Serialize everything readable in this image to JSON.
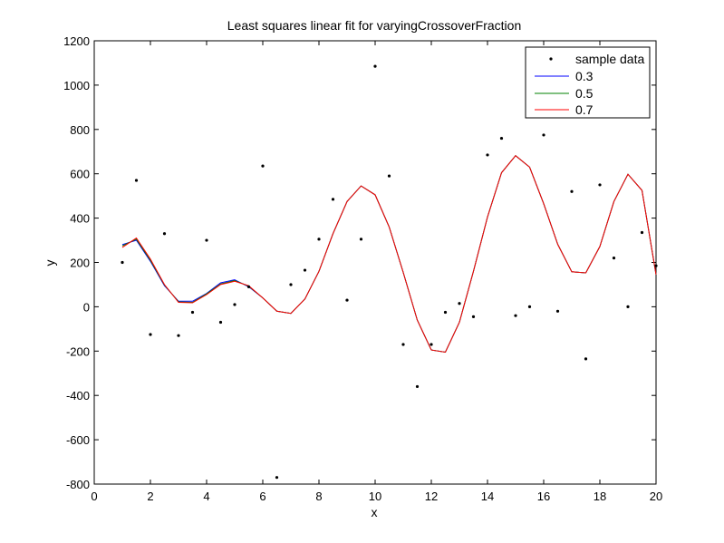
{
  "chart_data": {
    "type": "line",
    "title": "Least squares linear fit for varyingCrossoverFraction",
    "xlabel": "x",
    "ylabel": "y",
    "xlim": [
      0,
      20
    ],
    "ylim": [
      -800,
      1200
    ],
    "xticks": [
      0,
      2,
      4,
      6,
      8,
      10,
      12,
      14,
      16,
      18,
      20
    ],
    "yticks": [
      -800,
      -600,
      -400,
      -200,
      0,
      200,
      400,
      600,
      800,
      1000,
      1200
    ],
    "grid": false,
    "legend_position": "top-right",
    "scatter": {
      "name": "sample data",
      "color": "#000000",
      "x": [
        1,
        1.5,
        2,
        2.5,
        3,
        3.5,
        4,
        4.5,
        5,
        5.5,
        6,
        6.5,
        7,
        7.5,
        8,
        8.5,
        9,
        9.5,
        10,
        10.5,
        11,
        11.5,
        12,
        12.5,
        13,
        13.5,
        14,
        14.5,
        15,
        15.5,
        16,
        16.5,
        17,
        17.5,
        18,
        18.5,
        19,
        19.5,
        20
      ],
      "y": [
        200,
        570,
        -125,
        330,
        -130,
        -25,
        300,
        -70,
        10,
        90,
        635,
        -770,
        100,
        165,
        305,
        485,
        30,
        305,
        1085,
        590,
        -170,
        -360,
        -170,
        -25,
        15,
        -45,
        685,
        760,
        -40,
        0,
        775,
        -20,
        520,
        -235,
        550,
        220,
        0,
        335,
        185
      ]
    },
    "x": [
      1,
      1.5,
      2,
      2.5,
      3,
      3.5,
      4,
      4.5,
      5,
      5.5,
      6,
      6.5,
      7,
      7.5,
      8,
      8.5,
      9,
      9.5,
      10,
      10.5,
      11,
      11.5,
      12,
      12.5,
      13,
      13.5,
      14,
      14.5,
      15,
      15.5,
      16,
      16.5,
      17,
      17.5,
      18,
      18.5,
      19,
      19.5,
      20
    ],
    "series": [
      {
        "name": "0.3",
        "color": "#0000ff",
        "values": [
          280,
          300,
          205,
          95,
          25,
          25,
          60,
          108,
          122,
          90,
          40,
          -20,
          -30,
          35,
          160,
          330,
          475,
          545,
          505,
          360,
          155,
          -60,
          -195,
          -205,
          -70,
          160,
          405,
          605,
          682,
          630,
          465,
          282,
          158,
          153,
          272,
          475,
          598,
          525,
          145
        ]
      },
      {
        "name": "0.5",
        "color": "#008000",
        "values": [
          275,
          305,
          210,
          98,
          22,
          20,
          58,
          103,
          118,
          93,
          40,
          -20,
          -30,
          35,
          160,
          330,
          475,
          545,
          505,
          360,
          155,
          -60,
          -195,
          -205,
          -70,
          160,
          405,
          605,
          682,
          630,
          465,
          282,
          158,
          153,
          272,
          475,
          598,
          525,
          145
        ]
      },
      {
        "name": "0.7",
        "color": "#ff0000",
        "values": [
          268,
          310,
          215,
          100,
          20,
          18,
          55,
          100,
          115,
          95,
          40,
          -20,
          -30,
          35,
          160,
          330,
          475,
          545,
          505,
          360,
          155,
          -60,
          -195,
          -205,
          -70,
          160,
          405,
          605,
          682,
          630,
          465,
          282,
          158,
          153,
          272,
          475,
          598,
          525,
          145
        ]
      }
    ]
  }
}
